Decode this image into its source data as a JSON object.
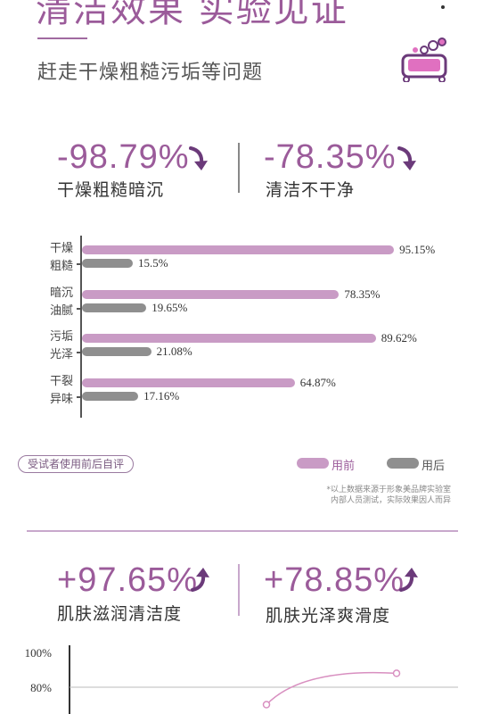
{
  "header": {
    "title": "清洁效果 实验见证",
    "subtitle": "赶走干燥粗糙污垢等问题"
  },
  "icons": {
    "soap": "soap-bubbles-icon",
    "down": "curved-arrow-down-icon",
    "up": "curved-arrow-up-icon"
  },
  "colors": {
    "accent": "#9b5b9a",
    "before": "#c99bc5",
    "after": "#8f8f8f",
    "line": "#c8a8cc"
  },
  "stats_top": [
    {
      "value": "-98.79%",
      "label": "干燥粗糙暗沉"
    },
    {
      "value": "-78.35%",
      "label": "清洁不干净"
    }
  ],
  "chart_data": [
    {
      "type": "bar",
      "orientation": "horizontal",
      "categories": [
        "干燥\n粗糙",
        "暗沉\n油腻",
        "污垢\n光泽",
        "干裂\n异味"
      ],
      "category_lines": [
        [
          "干燥",
          "粗糙"
        ],
        [
          "暗沉",
          "油腻"
        ],
        [
          "污垢",
          "光泽"
        ],
        [
          "干裂",
          "异味"
        ]
      ],
      "series": [
        {
          "name": "用前",
          "values": [
            95.15,
            78.35,
            89.62,
            64.87
          ],
          "labels": [
            "95.15%",
            "78.35%",
            "89.62%",
            "64.87%"
          ]
        },
        {
          "name": "用后",
          "values": [
            15.5,
            19.65,
            21.08,
            17.16
          ],
          "labels": [
            "15.5%",
            "19.65%",
            "21.08%",
            "17.16%"
          ]
        }
      ],
      "xlim": [
        0,
        100
      ],
      "legend_position": "bottom-right",
      "caption": "受试者使用前后自评",
      "note": [
        "*以上数据来源于形象美品牌实验室",
        "内部人员测试，实际效果因人而异"
      ]
    },
    {
      "type": "line",
      "y_ticks": [
        "100%",
        "80%"
      ],
      "ylim": [
        60,
        100
      ],
      "series": [
        {
          "name": "",
          "points": [
            [
              0.6,
              70
            ],
            [
              1.0,
              88
            ]
          ]
        }
      ]
    }
  ],
  "stats_bottom": [
    {
      "value": "+97.65%",
      "label": "肌肤滋润清洁度"
    },
    {
      "value": "+78.85%",
      "label": "肌肤光泽爽滑度"
    }
  ]
}
